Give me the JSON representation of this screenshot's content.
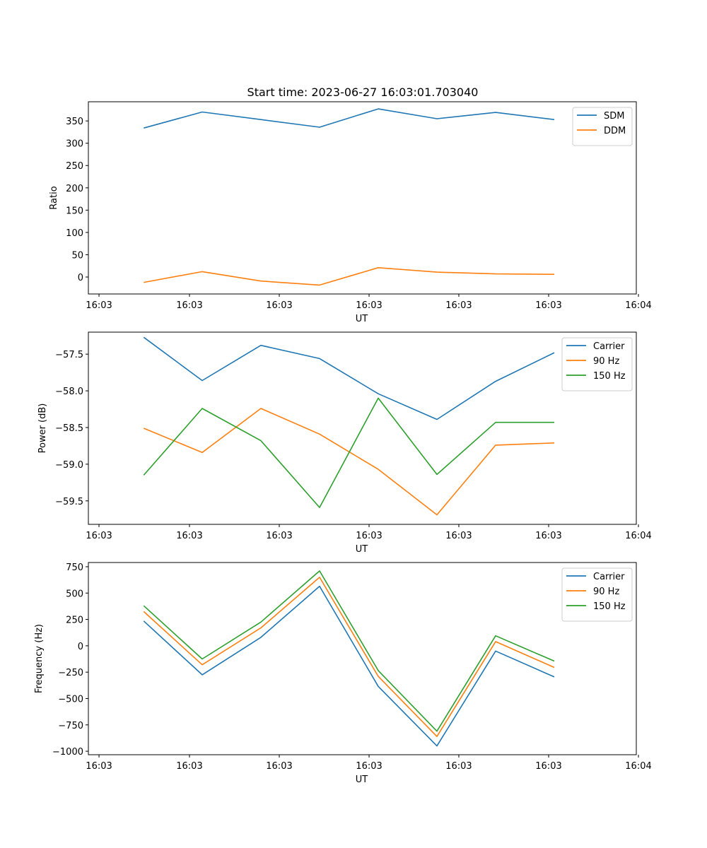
{
  "title": "Start time: 2023-06-27 16:03:01.703040",
  "chart_data": [
    {
      "type": "line",
      "xlabel": "UT",
      "ylabel": "Ratio",
      "x_ticks": [
        "16:03",
        "16:03",
        "16:03",
        "16:03",
        "16:03",
        "16:03",
        "16:04"
      ],
      "y_ticks": [
        "0",
        "50",
        "100",
        "150",
        "200",
        "250",
        "300",
        "350"
      ],
      "ylim": [
        -38,
        393
      ],
      "legend": "upper right",
      "grid": false,
      "series": [
        {
          "name": "SDM",
          "color": "#1f77b4",
          "values": [
            334,
            370,
            353,
            336,
            377,
            355,
            369,
            353
          ]
        },
        {
          "name": "DDM",
          "color": "#ff7f0e",
          "values": [
            -12,
            12,
            -9,
            -18,
            21,
            11,
            7,
            6
          ]
        }
      ]
    },
    {
      "type": "line",
      "xlabel": "UT",
      "ylabel": "Power (dB)",
      "x_ticks": [
        "16:03",
        "16:03",
        "16:03",
        "16:03",
        "16:03",
        "16:03",
        "16:04"
      ],
      "y_ticks": [
        "−59.5",
        "−59.0",
        "−58.5",
        "−58.0",
        "−57.5"
      ],
      "ylim": [
        -59.82,
        -57.2
      ],
      "legend": "upper right",
      "grid": false,
      "series": [
        {
          "name": "Carrier",
          "color": "#1f77b4",
          "values": [
            -57.27,
            -57.86,
            -57.38,
            -57.56,
            -58.04,
            -58.39,
            -57.87,
            -57.48
          ]
        },
        {
          "name": "90 Hz",
          "color": "#ff7f0e",
          "values": [
            -58.51,
            -58.84,
            -58.24,
            -58.59,
            -59.07,
            -59.69,
            -58.74,
            -58.71
          ]
        },
        {
          "name": "150 Hz",
          "color": "#2ca02c",
          "values": [
            -59.15,
            -58.24,
            -58.68,
            -59.59,
            -58.1,
            -59.14,
            -58.43,
            -58.43
          ]
        }
      ]
    },
    {
      "type": "line",
      "xlabel": "UT",
      "ylabel": "Frequency (Hz)",
      "x_ticks": [
        "16:03",
        "16:03",
        "16:03",
        "16:03",
        "16:03",
        "16:03",
        "16:04"
      ],
      "y_ticks": [
        "−1000",
        "−750",
        "−500",
        "−250",
        "0",
        "250",
        "500",
        "750"
      ],
      "ylim": [
        -1033,
        790
      ],
      "legend": "upper right",
      "grid": false,
      "series": [
        {
          "name": "Carrier",
          "color": "#1f77b4",
          "values": [
            235,
            -275,
            80,
            565,
            -385,
            -950,
            -50,
            -295
          ]
        },
        {
          "name": "90 Hz",
          "color": "#ff7f0e",
          "values": [
            325,
            -180,
            170,
            650,
            -290,
            -860,
            40,
            -205
          ]
        },
        {
          "name": "150 Hz",
          "color": "#2ca02c",
          "values": [
            380,
            -125,
            225,
            710,
            -235,
            -810,
            95,
            -145
          ]
        }
      ]
    }
  ]
}
